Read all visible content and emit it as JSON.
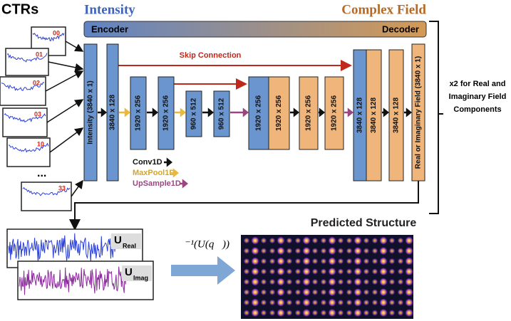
{
  "header": {
    "ctrs": "CTRs",
    "intensity": "Intensity",
    "complex_field": "Complex Field",
    "encoder": "Encoder",
    "decoder": "Decoder"
  },
  "ctr_samples": [
    "00",
    "01",
    "02",
    "03",
    "10",
    "33"
  ],
  "ellipsis": "...",
  "network": {
    "boxes": [
      "Intensity (3840 x 1)",
      "3840 x 128",
      "1920 x 256",
      "1920 x 256",
      "960 x 512",
      "960 x 512",
      "1920 x 256",
      "1920 x 256",
      "1920 x 256",
      "1920 x 256",
      "3840 x 128",
      "3840 x 128",
      "3840 x 128",
      "Real or Imaginary Field (3840 x 1)"
    ],
    "skip_connection": "Skip Connection",
    "legend": [
      "Conv1D",
      "MaxPool1D",
      "UpSample1D"
    ]
  },
  "repeat_note": [
    "x2 for Real and",
    "Imaginary Field",
    "Components"
  ],
  "outputs": {
    "real": {
      "symbol": "U",
      "subscript": "Real"
    },
    "imag": {
      "symbol": "U",
      "subscript": "Imag"
    }
  },
  "transform": "ℱ⁻¹(U(q⃗))",
  "result_title": "Predicted Structure"
}
